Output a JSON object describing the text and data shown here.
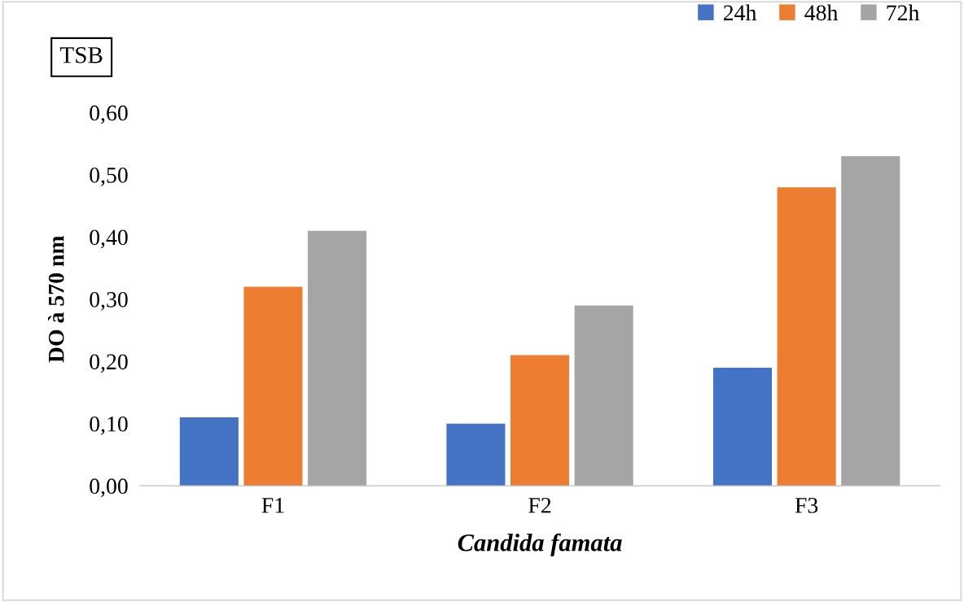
{
  "chart_data": {
    "type": "bar",
    "title": "TSB",
    "xlabel": "Candida famata",
    "ylabel": "DO à 570 nm",
    "categories": [
      "F1",
      "F2",
      "F3"
    ],
    "series": [
      {
        "name": "24h",
        "color": "#4472c4",
        "values": [
          0.11,
          0.1,
          0.19
        ]
      },
      {
        "name": "48h",
        "color": "#ed7d31",
        "values": [
          0.32,
          0.21,
          0.48
        ]
      },
      {
        "name": "72h",
        "color": "#a5a5a5",
        "values": [
          0.41,
          0.29,
          0.53
        ]
      }
    ],
    "ylim": [
      0,
      0.6
    ],
    "yticks": [
      {
        "value": 0,
        "label": "0,00"
      },
      {
        "value": 0.1,
        "label": "0,10"
      },
      {
        "value": 0.2,
        "label": "0,20"
      },
      {
        "value": 0.3,
        "label": "0,30"
      },
      {
        "value": 0.4,
        "label": "0,40"
      },
      {
        "value": 0.5,
        "label": "0,50"
      },
      {
        "value": 0.6,
        "label": "0,60"
      }
    ],
    "grid": false,
    "legend": "top right"
  }
}
